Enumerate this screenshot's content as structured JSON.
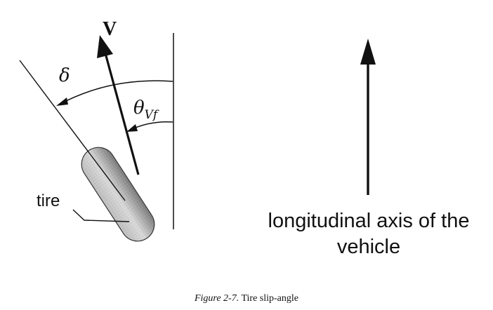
{
  "diagram": {
    "velocity_label": "V",
    "steer_angle_label": "δ",
    "theta_symbol": "θ",
    "theta_subscript": "Vf",
    "tire_label": "tire",
    "axis_label_line1": "longitudinal axis of the",
    "axis_label_line2": "vehicle"
  },
  "caption": {
    "prefix": "Figure 2-7.",
    "text": "Tire slip-angle"
  },
  "colors": {
    "ink": "#111111",
    "tire_light": "#e4e4e4",
    "tire_dark": "#6e6e6e",
    "background": "#ffffff"
  }
}
